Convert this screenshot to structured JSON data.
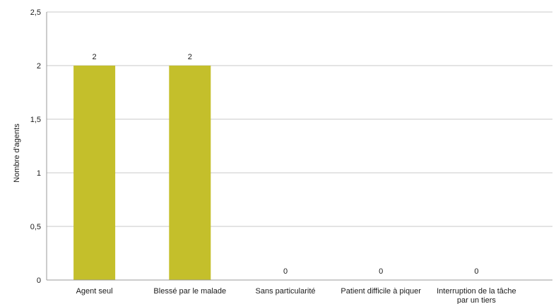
{
  "chart_data": {
    "type": "bar",
    "categories": [
      [
        "Agent seul"
      ],
      [
        "Blessé par le malade"
      ],
      [
        "Sans particularité"
      ],
      [
        "Patient difficile à piquer"
      ],
      [
        "Interruption de la tâche",
        "par un tiers"
      ]
    ],
    "values": [
      2,
      2,
      0,
      0,
      0
    ],
    "data_labels": [
      "2",
      "2",
      "0",
      "0",
      "0"
    ],
    "title": "",
    "xlabel": "",
    "ylabel": "Nombre d'agents",
    "ylim": [
      0,
      2.5
    ],
    "yticks": [
      0,
      0.5,
      1,
      1.5,
      2,
      2.5
    ],
    "ytick_labels": [
      "0",
      "0,5",
      "1",
      "1,5",
      "2",
      "2,5"
    ],
    "grid": true,
    "legend": "none",
    "bar_color": "#c4bf2b"
  }
}
